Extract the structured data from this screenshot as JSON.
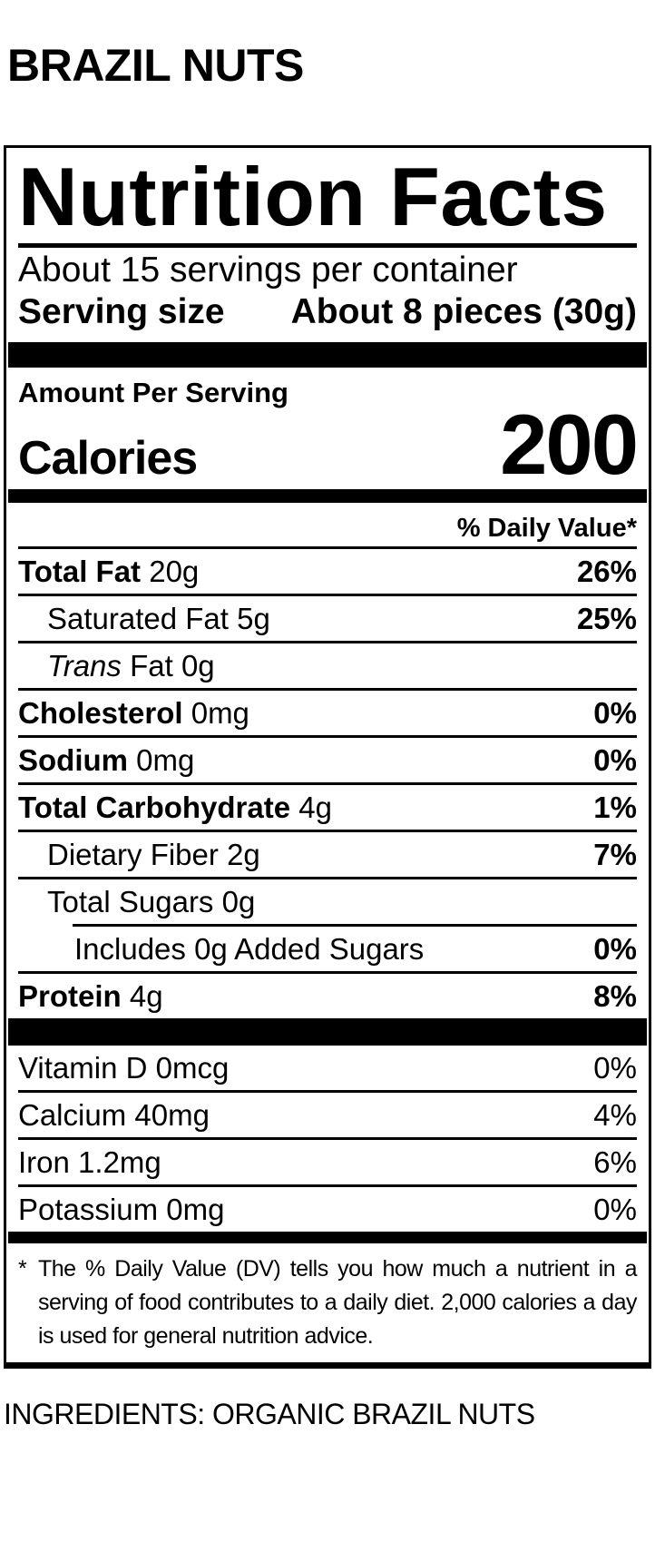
{
  "page": {
    "product_title": "BRAZIL NUTS",
    "ingredients_line": "INGREDIENTS: ORGANIC BRAZIL NUTS"
  },
  "label": {
    "title": "Nutrition Facts",
    "servings_per_container": "About 15 servings per container",
    "serving_size": {
      "label": "Serving size",
      "value": "About 8 pieces (30g)"
    },
    "amount_per_serving": "Amount Per Serving",
    "calories": {
      "label": "Calories",
      "value": "200"
    },
    "daily_value_header": "% Daily Value*",
    "rows": [
      {
        "name": "Total Fat",
        "amount": "20g",
        "dv": "26%"
      },
      {
        "name": "Saturated Fat",
        "amount": "5g",
        "dv": "25%"
      },
      {
        "name_italic": "Trans",
        "name": "Fat",
        "amount": "0g",
        "dv": ""
      },
      {
        "name": "Cholesterol",
        "amount": "0mg",
        "dv": "0%"
      },
      {
        "name": "Sodium",
        "amount": "0mg",
        "dv": "0%"
      },
      {
        "name": "Total Carbohydrate",
        "amount": "4g",
        "dv": "1%"
      },
      {
        "name": "Dietary Fiber",
        "amount": "2g",
        "dv": "7%"
      },
      {
        "name": "Total Sugars",
        "amount": "0g",
        "dv": ""
      },
      {
        "name": "Includes 0g Added Sugars",
        "amount": "",
        "dv": "0%"
      },
      {
        "name": "Protein",
        "amount": "4g",
        "dv": "8%"
      }
    ],
    "micronutrients": [
      {
        "name": "Vitamin D",
        "amount": "0mcg",
        "dv": "0%"
      },
      {
        "name": "Calcium",
        "amount": "40mg",
        "dv": "4%"
      },
      {
        "name": "Iron",
        "amount": "1.2mg",
        "dv": "6%"
      },
      {
        "name": "Potassium",
        "amount": "0mg",
        "dv": "0%"
      }
    ],
    "footnote_marker": "*",
    "footnote": "The % Daily Value (DV) tells you how much a nutrient in a serving of food contributes to a daily diet. 2,000 calories a day is used for general nutrition advice.",
    "colors": {
      "ink": "#000000",
      "paper": "#ffffff"
    }
  }
}
